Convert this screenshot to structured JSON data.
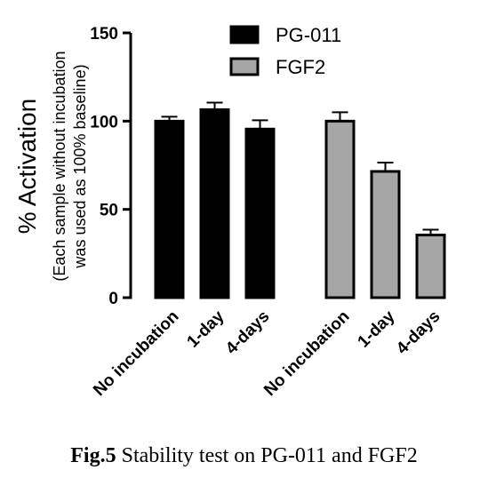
{
  "chart_data": {
    "type": "bar",
    "ylabel": "% Activation",
    "ylabel_sub_lines": [
      "(Each sample without incubation",
      "was used as 100% baseline)"
    ],
    "ylim": [
      0,
      150
    ],
    "yticks": [
      0,
      50,
      100,
      150
    ],
    "legend_position": "top",
    "series": [
      {
        "name": "PG-011",
        "color": "#000000",
        "categories": [
          "No incubation",
          "1-day",
          "4-days"
        ],
        "values": [
          100,
          106.5,
          95.5
        ],
        "errors": [
          2.5,
          4,
          5
        ]
      },
      {
        "name": "FGF2",
        "color": "#a6a6a6",
        "categories": [
          "No incubation",
          "1-day",
          "4-days"
        ],
        "values": [
          100,
          71.5,
          35.5
        ],
        "errors": [
          5,
          5,
          3
        ]
      }
    ]
  },
  "caption": {
    "label": "Fig.5",
    "text": " Stability test on PG-011 and FGF2"
  }
}
